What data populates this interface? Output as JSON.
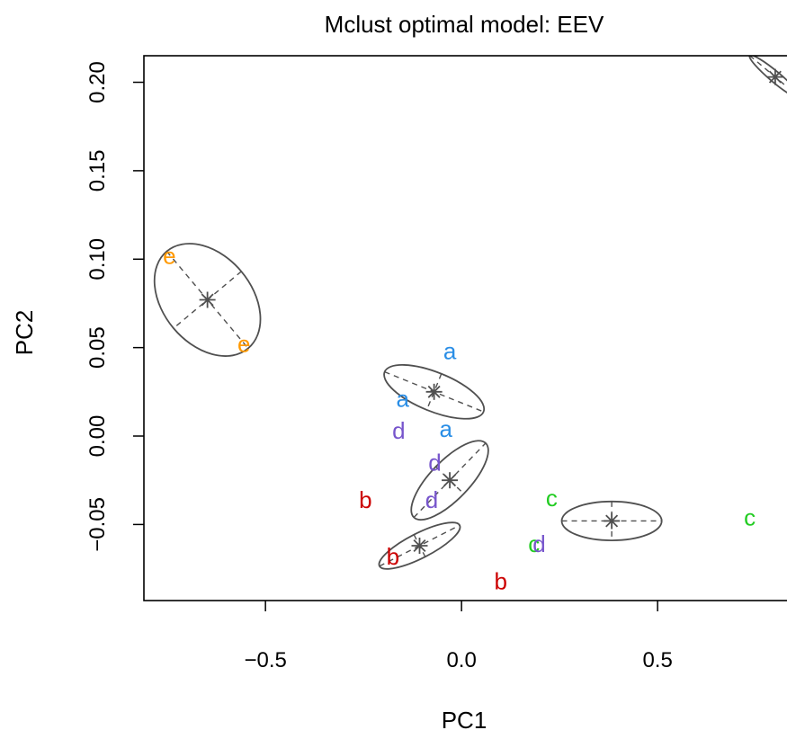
{
  "chart_data": {
    "type": "scatter",
    "title": "Mclust optimal model: EEV",
    "xlabel": "PC1",
    "ylabel": "PC2",
    "xlim": [
      -0.81,
      0.83
    ],
    "ylim": [
      -0.093,
      0.215
    ],
    "x_ticks": [
      -0.5,
      0.0,
      0.5
    ],
    "x_tick_labels": [
      "−0.5",
      "0.0",
      "0.5"
    ],
    "y_ticks": [
      -0.05,
      0.0,
      0.05,
      0.1,
      0.15,
      0.2
    ],
    "y_tick_labels": [
      "−0.05",
      "0.00",
      "0.05",
      "0.10",
      "0.15",
      "0.20"
    ],
    "grid": false,
    "legend": "none",
    "colors": {
      "a": "#2a8ee6",
      "b": "#cc0000",
      "c": "#22cc22",
      "d": "#7755cc",
      "e": "#ff9900",
      "cluster": "#505050"
    },
    "points": [
      {
        "label": "a",
        "x": -0.03,
        "y": 0.048
      },
      {
        "label": "a",
        "x": -0.15,
        "y": 0.021
      },
      {
        "label": "a",
        "x": -0.04,
        "y": 0.004
      },
      {
        "label": "b",
        "x": -0.245,
        "y": -0.036
      },
      {
        "label": "b",
        "x": -0.175,
        "y": -0.068
      },
      {
        "label": "b",
        "x": 0.1,
        "y": -0.082
      },
      {
        "label": "c",
        "x": 0.23,
        "y": -0.035
      },
      {
        "label": "c",
        "x": 0.185,
        "y": -0.061
      },
      {
        "label": "c",
        "x": 0.735,
        "y": -0.046
      },
      {
        "label": "d",
        "x": -0.16,
        "y": 0.003
      },
      {
        "label": "d",
        "x": -0.068,
        "y": -0.015
      },
      {
        "label": "d",
        "x": -0.076,
        "y": -0.036
      },
      {
        "label": "d",
        "x": 0.198,
        "y": -0.061
      },
      {
        "label": "e",
        "x": -0.745,
        "y": 0.102
      },
      {
        "label": "e",
        "x": -0.555,
        "y": 0.052
      }
    ],
    "clusters": [
      {
        "cx": -0.648,
        "cy": 0.077,
        "rx": 0.19,
        "ry": 0.025,
        "angle_deg": 0
      },
      {
        "cx": -0.07,
        "cy": 0.025,
        "rx": 0.16,
        "ry": 0.011,
        "angle_deg": 0
      },
      {
        "cx": -0.03,
        "cy": -0.025,
        "rx": 0.155,
        "ry": 0.011,
        "angle_deg": 0
      },
      {
        "cx": -0.107,
        "cy": -0.062,
        "rx": 0.135,
        "ry": 0.007,
        "angle_deg": 0
      },
      {
        "cx": 0.383,
        "cy": -0.048,
        "rx": 0.15,
        "ry": 0.011,
        "angle_deg": 0
      },
      {
        "cx": 0.8,
        "cy": 0.203,
        "rx": 0.1,
        "ry": 0.003,
        "angle_deg": 0
      }
    ]
  }
}
